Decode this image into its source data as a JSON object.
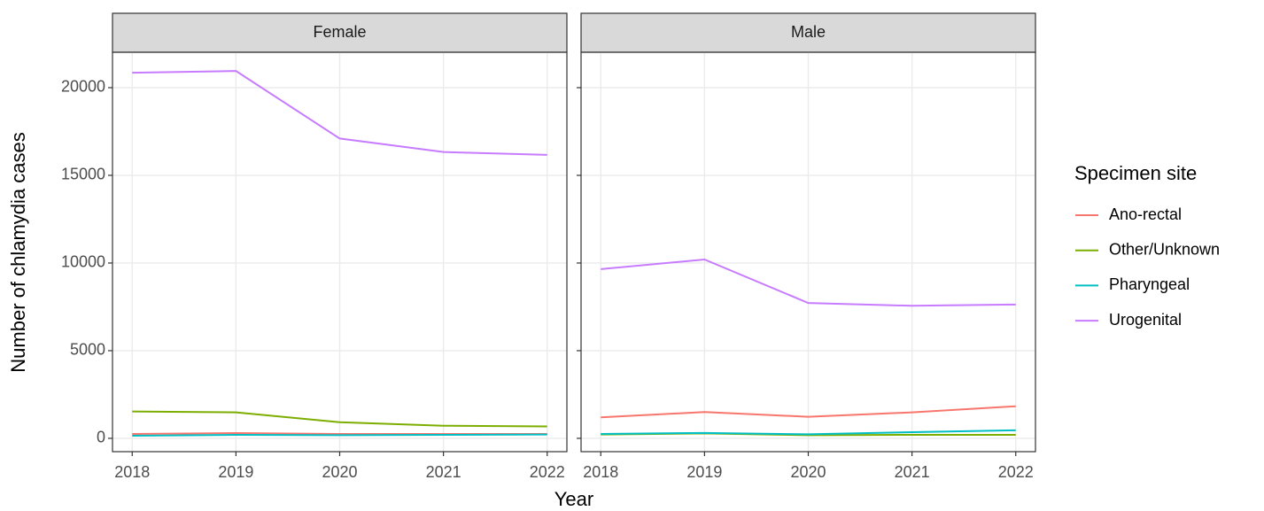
{
  "x_label": "Year",
  "y_label": "Number of chlamydia cases",
  "legend_title": "Specimen site",
  "chart_data": [
    {
      "type": "line",
      "title": "Female",
      "x": [
        2018,
        2019,
        2020,
        2021,
        2022
      ],
      "xlim": [
        2017.81,
        2022.19
      ],
      "xticks": [
        2018,
        2019,
        2020,
        2021,
        2022
      ],
      "ylim": [
        -760,
        22020
      ],
      "yticks": [
        0,
        5000,
        10000,
        15000,
        20000
      ],
      "grid": true,
      "series": [
        {
          "name": "Ano-rectal",
          "color": "#F8766D",
          "values": [
            250,
            300,
            250,
            250,
            250
          ]
        },
        {
          "name": "Other/Unknown",
          "color": "#7CAE00",
          "values": [
            1530,
            1480,
            920,
            720,
            680
          ]
        },
        {
          "name": "Pharyngeal",
          "color": "#00BFC4",
          "values": [
            150,
            200,
            180,
            200,
            220
          ]
        },
        {
          "name": "Urogenital",
          "color": "#C77CFF",
          "values": [
            20850,
            20950,
            17100,
            16330,
            16170
          ]
        }
      ]
    },
    {
      "type": "line",
      "title": "Male",
      "x": [
        2018,
        2019,
        2020,
        2021,
        2022
      ],
      "xlim": [
        2017.81,
        2022.19
      ],
      "xticks": [
        2018,
        2019,
        2020,
        2021,
        2022
      ],
      "ylim": [
        -760,
        22020
      ],
      "yticks": [
        0,
        5000,
        10000,
        15000,
        20000
      ],
      "grid": true,
      "series": [
        {
          "name": "Ano-rectal",
          "color": "#F8766D",
          "values": [
            1200,
            1500,
            1230,
            1480,
            1830
          ]
        },
        {
          "name": "Other/Unknown",
          "color": "#7CAE00",
          "values": [
            220,
            280,
            180,
            200,
            200
          ]
        },
        {
          "name": "Pharyngeal",
          "color": "#00BFC4",
          "values": [
            250,
            310,
            230,
            350,
            460
          ]
        },
        {
          "name": "Urogenital",
          "color": "#C77CFF",
          "values": [
            9650,
            10200,
            7720,
            7560,
            7630
          ]
        }
      ]
    }
  ]
}
